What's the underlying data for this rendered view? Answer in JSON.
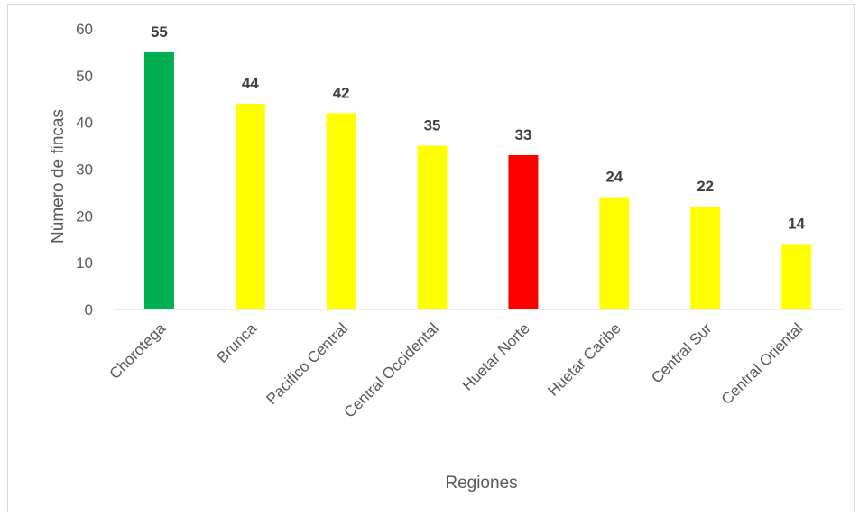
{
  "chart_data": {
    "type": "bar",
    "title": "",
    "xlabel": "Regiones",
    "ylabel": "Número de fincas",
    "ylim": [
      0,
      60
    ],
    "yticks": [
      0,
      10,
      20,
      30,
      40,
      50,
      60
    ],
    "grid": false,
    "legend": "none",
    "categories": [
      "Chorotega",
      "Brunca",
      "Pacifico Central",
      "Central Occidental",
      "Huetar Norte",
      "Huetar Caribe",
      "Central Sur",
      "Central Oriental"
    ],
    "values": [
      55,
      44,
      42,
      35,
      33,
      24,
      22,
      14
    ],
    "data_labels": [
      "55",
      "44",
      "42",
      "35",
      "33",
      "24",
      "22",
      "14"
    ],
    "bar_colors": [
      "#00b050",
      "#ffff00",
      "#ffff00",
      "#ffff00",
      "#ff0000",
      "#ffff00",
      "#ffff00",
      "#ffff00"
    ]
  }
}
